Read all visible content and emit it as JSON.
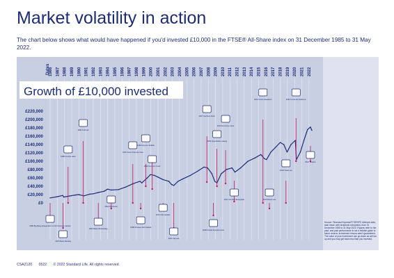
{
  "title": "Market volatility in action",
  "subtitle": "The chart below shows what would have happened if you'd invested £10,000 in the FTSE® All-Share index on 31 December 1985 to 31 May 2022.",
  "footer": {
    "code": "CSA2120",
    "date": "0522",
    "copyright": "© 2022 Standard Life. All rights reserved."
  },
  "source_note": "Source: Financial Express/FTSE®/FE Allshare data, total return with dividends reinvested, from 31 December 1985 to 31 May 2022. Figures refer to the past, and past performance is not a reliable guide to future returns; investment returns aren't guaranteed. The value of your investment can go down as well as up and you may get back less than you invested.",
  "colors": {
    "panel": "#c8cfe3",
    "line": "#1c2c77",
    "accent": "#c2185b",
    "title_text": "#1c2c77"
  },
  "chart_data": {
    "type": "line",
    "title": "Growth of £10,000 invested",
    "dates_label": "Dates",
    "years": [
      "1986",
      "1987",
      "1988",
      "1989",
      "1990",
      "1991",
      "1992",
      "1993",
      "1994",
      "1995",
      "1996",
      "1997",
      "1998",
      "1999",
      "2000",
      "2001",
      "2002",
      "2003",
      "2004",
      "2005",
      "2006",
      "2007",
      "2008",
      "2009",
      "2010",
      "2011",
      "2012",
      "2013",
      "2014",
      "2015",
      "2016",
      "2017",
      "2018",
      "2019",
      "2020",
      "2021",
      "2022"
    ],
    "y_ticks": [
      "£220,000",
      "£200,000",
      "£180,000",
      "£160,000",
      "£140,000",
      "£120,000",
      "£100,000",
      "£80,000",
      "£60,000",
      "£40,000",
      "£20,000",
      "£0"
    ],
    "ylim": [
      0,
      220000
    ],
    "x": [
      1986.0,
      1987.0,
      1987.75,
      1987.9,
      1988.5,
      1989.5,
      1990.0,
      1990.7,
      1991.5,
      1992.0,
      1992.7,
      1993.5,
      1994.0,
      1994.5,
      1995.5,
      1996.5,
      1997.5,
      1998.5,
      1998.75,
      1999.5,
      1999.95,
      2000.5,
      2001.0,
      2001.7,
      2002.5,
      2002.9,
      2003.2,
      2003.8,
      2004.5,
      2005.5,
      2006.5,
      2007.4,
      2007.9,
      2008.5,
      2008.9,
      2009.2,
      2009.8,
      2010.5,
      2011.3,
      2011.7,
      2012.5,
      2013.5,
      2014.5,
      2015.3,
      2015.8,
      2016.1,
      2016.7,
      2017.5,
      2018.0,
      2018.5,
      2018.95,
      2019.5,
      2020.1,
      2020.25,
      2020.8,
      2021.3,
      2021.8,
      2022.2,
      2022.4
    ],
    "values": [
      12000,
      15000,
      18000,
      14000,
      16000,
      19000,
      20000,
      17000,
      21000,
      22000,
      25000,
      28000,
      33000,
      31000,
      32000,
      38000,
      46000,
      52000,
      48000,
      60000,
      68000,
      66000,
      62000,
      56000,
      52000,
      44000,
      42000,
      52000,
      58000,
      66000,
      76000,
      86000,
      84000,
      70000,
      52000,
      48000,
      70000,
      80000,
      84000,
      74000,
      84000,
      100000,
      108000,
      116000,
      106000,
      104000,
      122000,
      136000,
      145000,
      140000,
      122000,
      140000,
      150000,
      104000,
      122000,
      150000,
      176000,
      182000,
      174000
    ]
  },
  "events": [
    {
      "label": "1986 Big Bang deregulation of UK financial markets"
    },
    {
      "label": "1987 Black Monday"
    },
    {
      "label": "1988 Interest rates"
    },
    {
      "label": "1990 Gulf war"
    },
    {
      "label": "1992 Black Wednesday"
    },
    {
      "label": "1994 Recession"
    },
    {
      "label": "1997 Asian financial crisis"
    },
    {
      "label": "1998 Russian debt default"
    },
    {
      "label": "1999 Dot-com bubble"
    },
    {
      "label": "2000 Dot-com crash"
    },
    {
      "label": "2001 9/11 attacks"
    },
    {
      "label": "2003 Iraq war"
    },
    {
      "label": "2007 Northern Rock"
    },
    {
      "label": "2008 Global financial crisis"
    },
    {
      "label": "2009 Quantitative easing"
    },
    {
      "label": "2010 Eurozone crisis"
    },
    {
      "label": "2011 US debt downgrade"
    },
    {
      "label": "2015 China slowdown"
    },
    {
      "label": "2016 Brexit vote"
    },
    {
      "label": "2018 Trade war"
    },
    {
      "label": "2020 Covid-19 pandemic"
    },
    {
      "label": "2022 Ukraine"
    }
  ]
}
